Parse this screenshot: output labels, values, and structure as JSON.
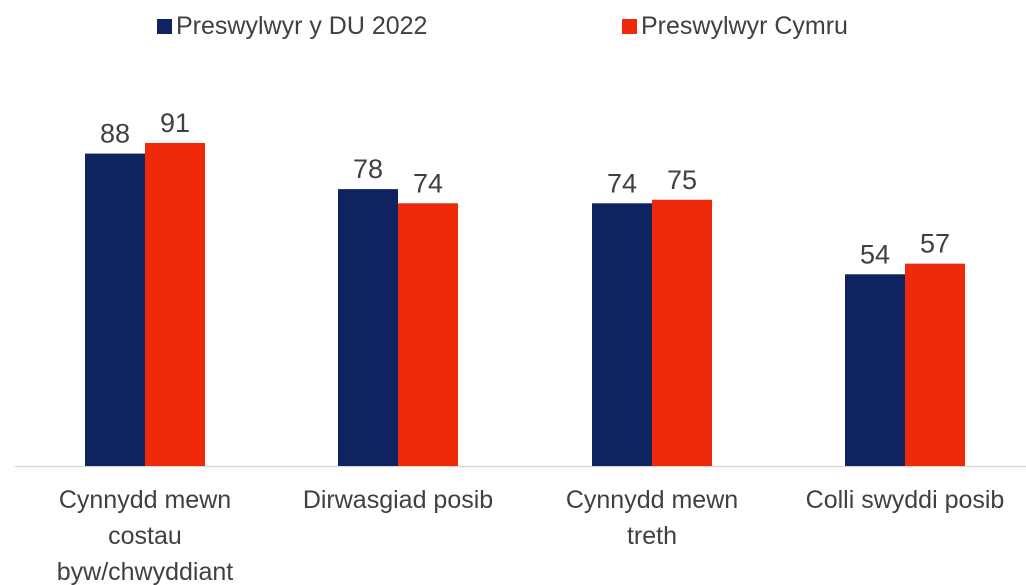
{
  "chart_data": {
    "type": "bar",
    "title": "",
    "xlabel": "",
    "ylabel": "",
    "ylim": [
      0,
      100
    ],
    "grid": false,
    "legend_position": "top",
    "categories": [
      [
        "Cynnydd mewn",
        "costau",
        "byw/chwyddiant"
      ],
      [
        "Dirwasgiad posib"
      ],
      [
        "Cynnydd mewn",
        "treth"
      ],
      [
        "Colli swyddi posib"
      ]
    ],
    "series": [
      {
        "name": "Preswylwyr y DU 2022",
        "color": "#0e2360",
        "values": [
          88,
          78,
          74,
          54
        ]
      },
      {
        "name": "Preswylwyr Cymru",
        "color": "#ee2a0b",
        "values": [
          91,
          74,
          75,
          57
        ]
      }
    ]
  },
  "colors": {
    "axis": "#d9d9d9",
    "text": "#404040"
  }
}
